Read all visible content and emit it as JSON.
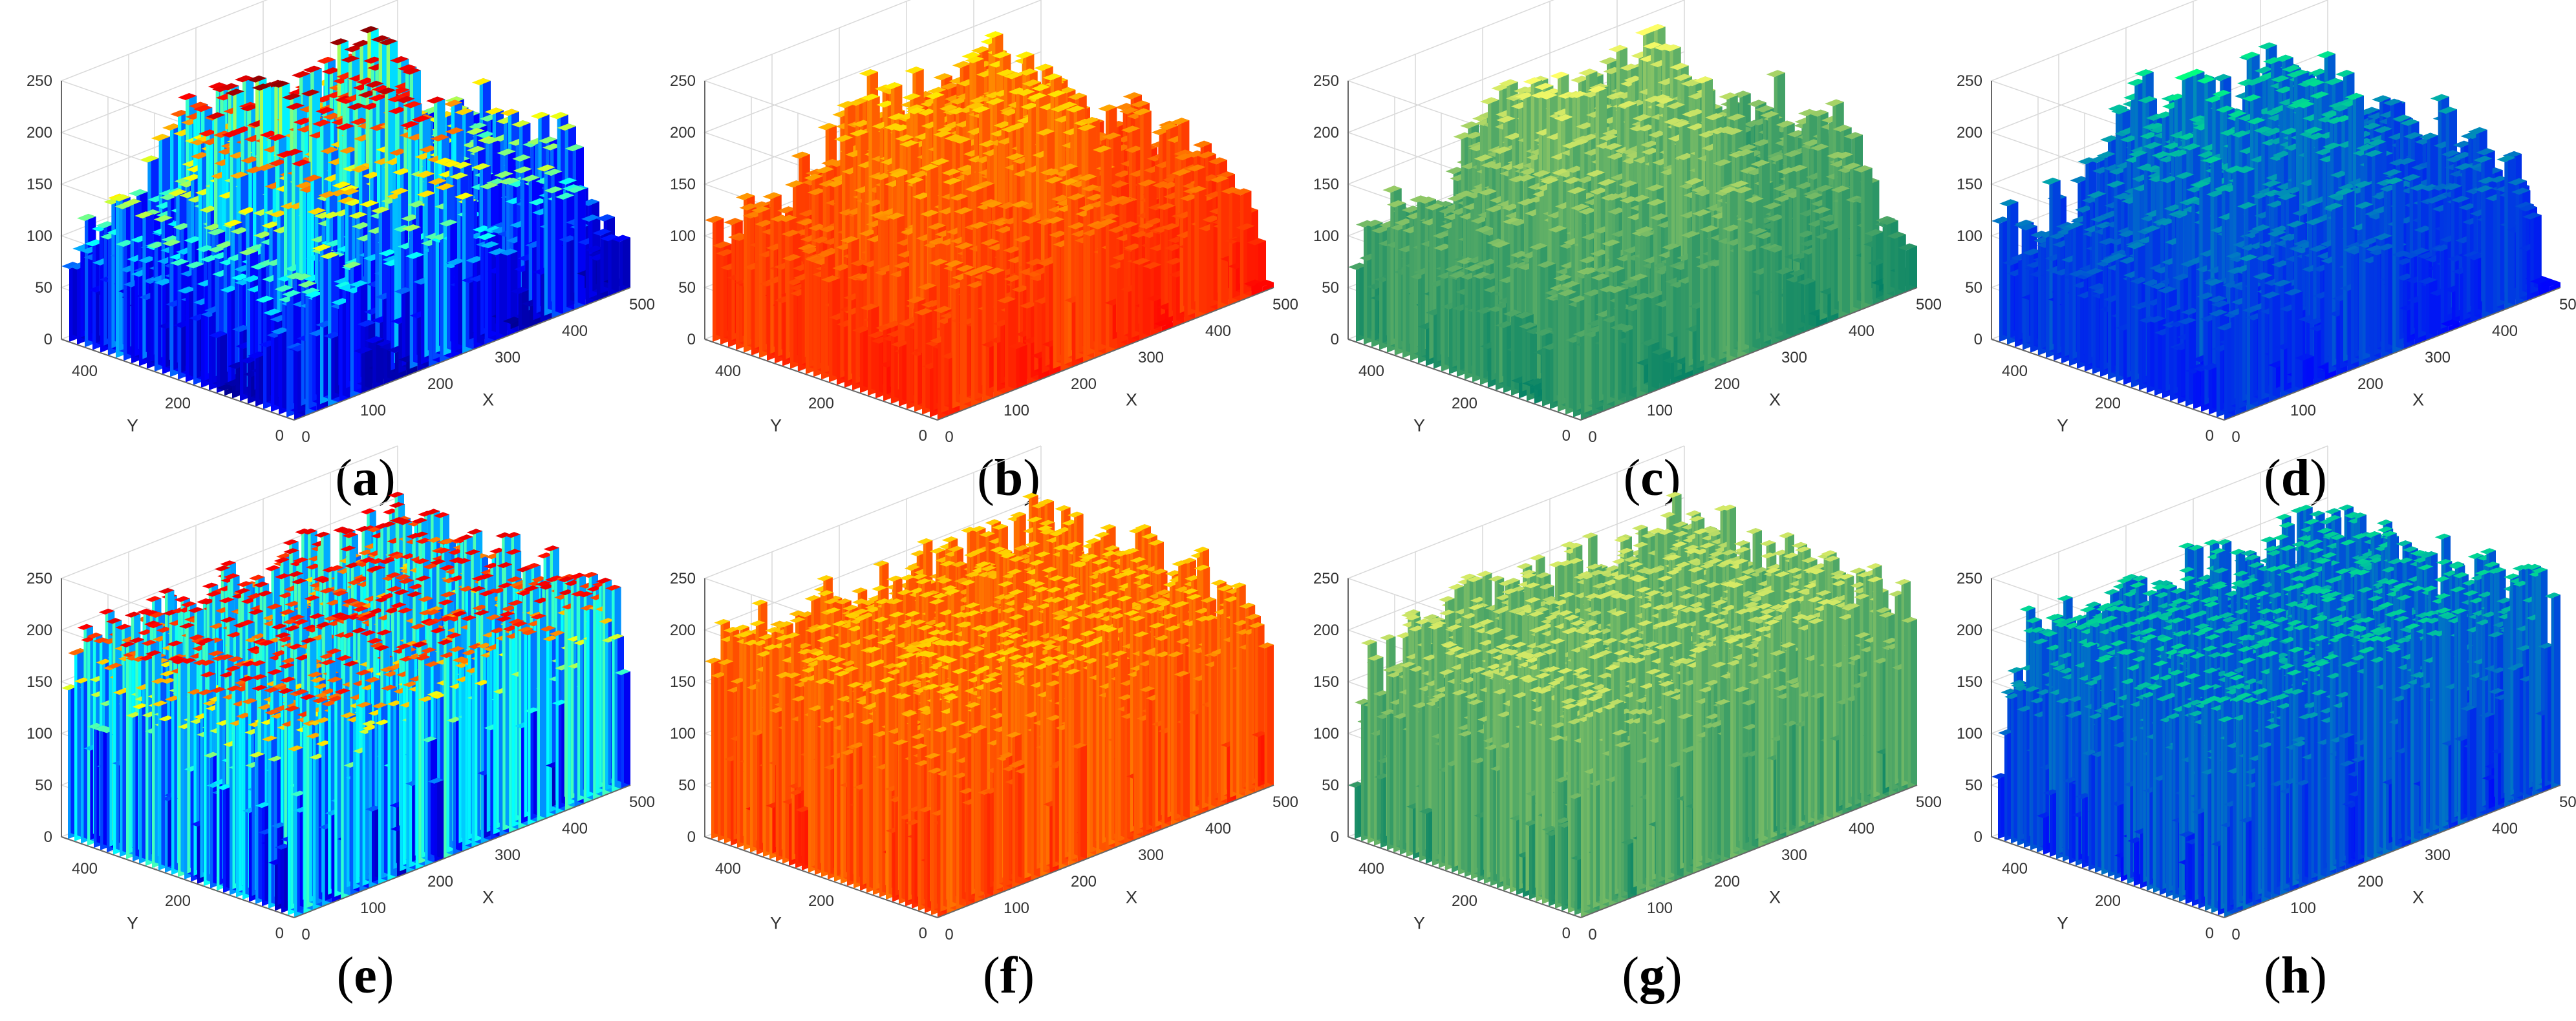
{
  "panels": [
    {
      "id": "a",
      "label": "a",
      "colormap": "jet",
      "pattern": "smooth"
    },
    {
      "id": "b",
      "label": "b",
      "colormap": "autumn",
      "pattern": "smooth"
    },
    {
      "id": "c",
      "label": "c",
      "colormap": "summer",
      "pattern": "smooth"
    },
    {
      "id": "d",
      "label": "d",
      "colormap": "winter",
      "pattern": "smooth"
    },
    {
      "id": "e",
      "label": "e",
      "colormap": "jet",
      "pattern": "noise"
    },
    {
      "id": "f",
      "label": "f",
      "colormap": "autumn",
      "pattern": "noise"
    },
    {
      "id": "g",
      "label": "g",
      "colormap": "summer",
      "pattern": "noise"
    },
    {
      "id": "h",
      "label": "h",
      "colormap": "winter",
      "pattern": "noise"
    }
  ],
  "colormaps": {
    "jet": [
      "#00008f",
      "#0000ff",
      "#00ffff",
      "#ffff00",
      "#ff0000",
      "#800000"
    ],
    "autumn": [
      "#ff0000",
      "#ffff00"
    ],
    "summer": [
      "#008066",
      "#ffff66"
    ],
    "winter": [
      "#0000ff",
      "#00ff80"
    ]
  },
  "chart_data": {
    "type": "surface",
    "x_axis": {
      "label": "X",
      "ticks": [
        0,
        100,
        200,
        300,
        400,
        500
      ],
      "range": [
        0,
        500
      ]
    },
    "y_axis": {
      "label": "Y",
      "ticks": [
        0,
        200,
        400
      ],
      "range": [
        0,
        500
      ]
    },
    "z_axis": {
      "label": "",
      "ticks": [
        0,
        50,
        100,
        150,
        200,
        250
      ],
      "range": [
        0,
        250
      ]
    },
    "grid": true,
    "panels": [
      {
        "panel": "a",
        "content": "image pixel-intensity surface",
        "colormap": "jet"
      },
      {
        "panel": "b",
        "content": "image pixel-intensity surface",
        "colormap": "autumn"
      },
      {
        "panel": "c",
        "content": "image pixel-intensity surface",
        "colormap": "summer"
      },
      {
        "panel": "d",
        "content": "image pixel-intensity surface",
        "colormap": "winter"
      },
      {
        "panel": "e",
        "content": "noise-like intensity surface",
        "colormap": "jet"
      },
      {
        "panel": "f",
        "content": "noise-like intensity surface",
        "colormap": "autumn"
      },
      {
        "panel": "g",
        "content": "noise-like intensity surface",
        "colormap": "summer"
      },
      {
        "panel": "h",
        "content": "noise-like intensity surface",
        "colormap": "winter"
      }
    ]
  }
}
